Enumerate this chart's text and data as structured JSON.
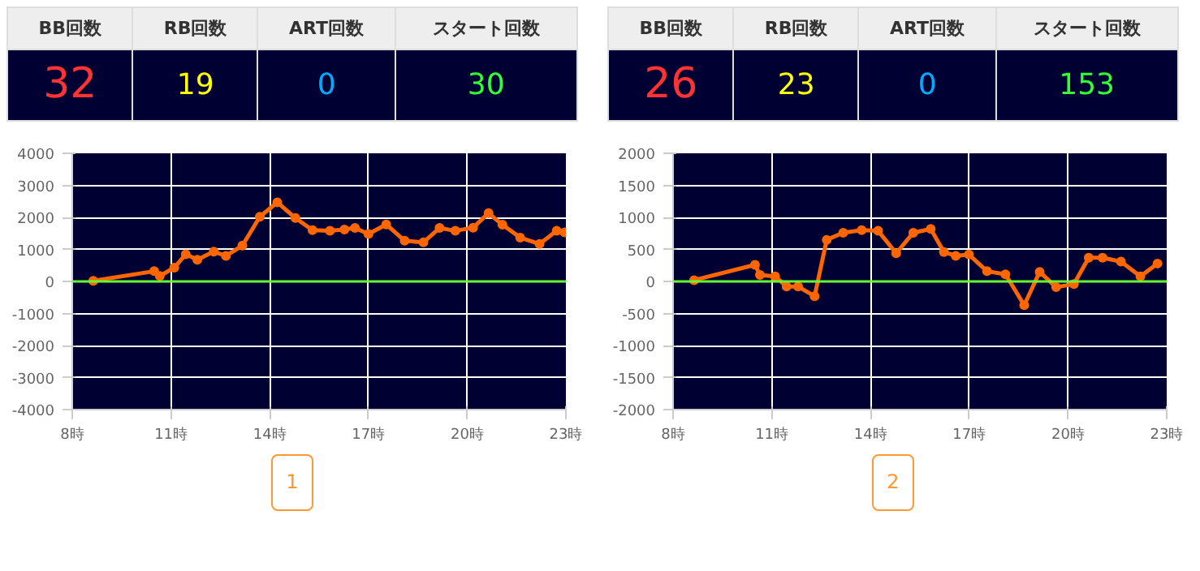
{
  "chart_data": [
    {
      "type": "other",
      "annotations": [
        "BB回数",
        "RB回数",
        "ART回数",
        "スタート回数",
        "32",
        "19",
        "0",
        "30"
      ]
    },
    {
      "type": "line",
      "series": [
        {
          "color": "#ff6600",
          "x": [
            8.64,
            10.49,
            10.66,
            11.1,
            11.45,
            11.8,
            12.3,
            12.67,
            13.17,
            13.7,
            14.23,
            14.78,
            15.3,
            15.83,
            16.27,
            16.59,
            17.0,
            17.54,
            18.1,
            18.67,
            19.16,
            19.64,
            20.18,
            20.65,
            21.07,
            21.61,
            22.2,
            22.72,
            22.96
          ],
          "values": [
            20,
            320,
            170,
            430,
            850,
            680,
            930,
            800,
            1120,
            2020,
            2470,
            1980,
            1600,
            1580,
            1620,
            1670,
            1480,
            1780,
            1270,
            1220,
            1670,
            1580,
            1680,
            2130,
            1770,
            1370,
            1170,
            1580,
            1530
          ]
        }
      ],
      "xlim": [
        8,
        23
      ],
      "xticks": [
        {
          "value": 8,
          "label": "8時"
        },
        {
          "value": 11,
          "label": "11時"
        },
        {
          "value": 14,
          "label": "14時"
        },
        {
          "value": 17,
          "label": "17時"
        },
        {
          "value": 20,
          "label": "20時"
        },
        {
          "value": 23,
          "label": "23時"
        }
      ],
      "ylim": [
        -4000,
        4000
      ],
      "yticks": [
        -4000,
        -3000,
        -2000,
        -1000,
        0,
        1000,
        2000,
        3000,
        4000
      ],
      "grid": true,
      "marker": "circle",
      "line_style": "solid",
      "ref_lines": [
        {
          "axis": "y",
          "value": 0,
          "color": "#66ff33"
        }
      ],
      "annotations": [
        "1"
      ]
    },
    {
      "type": "other",
      "annotations": [
        "BB回数",
        "RB回数",
        "ART回数",
        "スタート回数",
        "26",
        "23",
        "0",
        "153"
      ]
    },
    {
      "type": "line",
      "series": [
        {
          "color": "#ff6600",
          "x": [
            8.64,
            10.49,
            10.64,
            11.1,
            11.45,
            11.8,
            12.3,
            12.67,
            13.17,
            13.73,
            14.23,
            14.78,
            15.3,
            15.83,
            16.23,
            16.59,
            16.99,
            17.54,
            18.1,
            18.67,
            19.14,
            19.64,
            20.18,
            20.63,
            21.05,
            21.61,
            22.2,
            22.72
          ],
          "values": [
            20,
            260,
            100,
            80,
            -80,
            -80,
            -230,
            650,
            760,
            800,
            790,
            440,
            760,
            820,
            460,
            400,
            420,
            160,
            110,
            -370,
            150,
            -90,
            -40,
            370,
            370,
            310,
            80,
            280
          ]
        }
      ],
      "xlim": [
        8,
        23
      ],
      "xticks": [
        {
          "value": 8,
          "label": "8時"
        },
        {
          "value": 11,
          "label": "11時"
        },
        {
          "value": 14,
          "label": "14時"
        },
        {
          "value": 17,
          "label": "17時"
        },
        {
          "value": 20,
          "label": "20時"
        },
        {
          "value": 23,
          "label": "23時"
        }
      ],
      "ylim": [
        -2000,
        2000
      ],
      "yticks": [
        -2000,
        -1500,
        -1000,
        -500,
        0,
        500,
        1000,
        1500,
        2000
      ],
      "grid": true,
      "marker": "circle",
      "line_style": "solid",
      "ref_lines": [
        {
          "axis": "y",
          "value": 0,
          "color": "#66ff33"
        }
      ],
      "annotations": [
        "2"
      ]
    }
  ]
}
